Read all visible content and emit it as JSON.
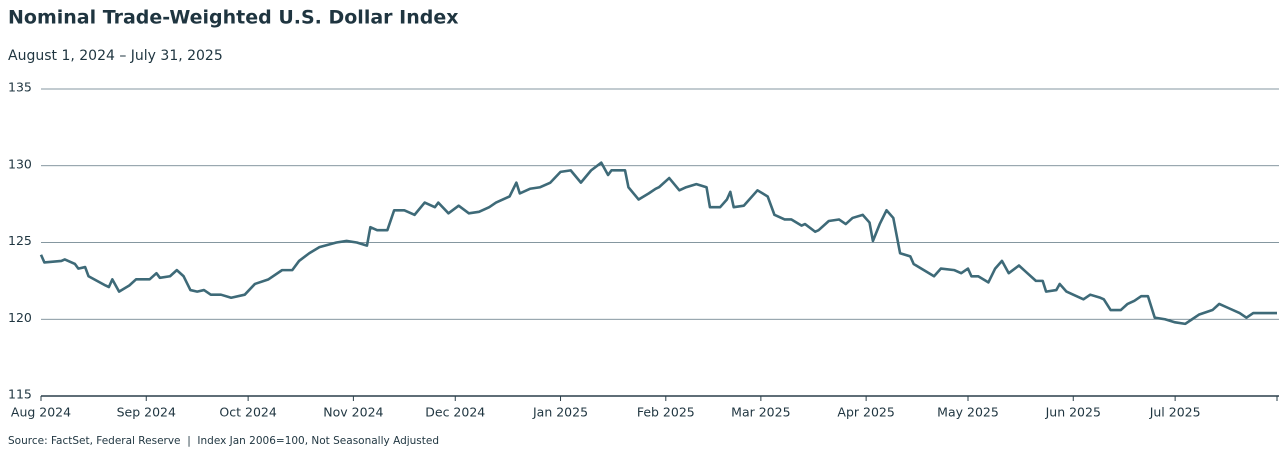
{
  "chart_data": {
    "type": "line",
    "title": "Nominal Trade-Weighted U.S. Dollar Index",
    "subtitle": "August 1, 2024 – July 31, 2025",
    "note": "Source: FactSet, Federal Reserve  |  Index Jan 2006=100, Not Seasonally Adjusted",
    "color": "#3e6a78",
    "grid": true,
    "ylim": [
      115,
      135
    ],
    "yticks": [
      115,
      120,
      125,
      130,
      135
    ],
    "xlim": [
      "2024-08-01",
      "2025-07-31"
    ],
    "xticks": [
      {
        "value": "2024-08-01",
        "label": "Aug 2024"
      },
      {
        "value": "2024-09-01",
        "label": "Sep 2024"
      },
      {
        "value": "2024-10-01",
        "label": "Oct 2024"
      },
      {
        "value": "2024-11-01",
        "label": "Nov 2024"
      },
      {
        "value": "2024-12-01",
        "label": "Dec 2024"
      },
      {
        "value": "2025-01-01",
        "label": "Jan 2025"
      },
      {
        "value": "2025-02-01",
        "label": "Feb 2025"
      },
      {
        "value": "2025-03-01",
        "label": "Mar 2025"
      },
      {
        "value": "2025-04-01",
        "label": "Apr 2025"
      },
      {
        "value": "2025-05-01",
        "label": "May 2025"
      },
      {
        "value": "2025-06-01",
        "label": "Jun 2025"
      },
      {
        "value": "2025-07-01",
        "label": "Jul 2025"
      }
    ],
    "x": [
      "2024-08-01",
      "2024-08-02",
      "2024-08-07",
      "2024-08-08",
      "2024-08-11",
      "2024-08-12",
      "2024-08-14",
      "2024-08-15",
      "2024-08-20",
      "2024-08-21",
      "2024-08-22",
      "2024-08-24",
      "2024-08-27",
      "2024-08-29",
      "2024-09-02",
      "2024-09-04",
      "2024-09-05",
      "2024-09-08",
      "2024-09-10",
      "2024-09-12",
      "2024-09-14",
      "2024-09-16",
      "2024-09-18",
      "2024-09-20",
      "2024-09-23",
      "2024-09-26",
      "2024-09-30",
      "2024-10-03",
      "2024-10-07",
      "2024-10-11",
      "2024-10-14",
      "2024-10-16",
      "2024-10-19",
      "2024-10-22",
      "2024-10-27",
      "2024-10-30",
      "2024-11-02",
      "2024-11-05",
      "2024-11-06",
      "2024-11-08",
      "2024-11-11",
      "2024-11-13",
      "2024-11-16",
      "2024-11-19",
      "2024-11-22",
      "2024-11-25",
      "2024-11-26",
      "2024-11-29",
      "2024-12-02",
      "2024-12-05",
      "2024-12-08",
      "2024-12-11",
      "2024-12-13",
      "2024-12-17",
      "2024-12-19",
      "2024-12-20",
      "2024-12-23",
      "2024-12-26",
      "2024-12-29",
      "2025-01-01",
      "2025-01-04",
      "2025-01-07",
      "2025-01-10",
      "2025-01-13",
      "2025-01-15",
      "2025-01-16",
      "2025-01-20",
      "2025-01-21",
      "2025-01-24",
      "2025-01-27",
      "2025-01-29",
      "2025-01-30",
      "2025-02-02",
      "2025-02-05",
      "2025-02-07",
      "2025-02-10",
      "2025-02-13",
      "2025-02-14",
      "2025-02-17",
      "2025-02-19",
      "2025-02-20",
      "2025-02-21",
      "2025-02-24",
      "2025-02-28",
      "2025-03-03",
      "2025-03-05",
      "2025-03-08",
      "2025-03-10",
      "2025-03-13",
      "2025-03-14",
      "2025-03-17",
      "2025-03-18",
      "2025-03-21",
      "2025-03-24",
      "2025-03-26",
      "2025-03-28",
      "2025-03-31",
      "2025-04-02",
      "2025-04-03",
      "2025-04-05",
      "2025-04-07",
      "2025-04-09",
      "2025-04-11",
      "2025-04-14",
      "2025-04-15",
      "2025-04-18",
      "2025-04-21",
      "2025-04-23",
      "2025-04-27",
      "2025-04-29",
      "2025-05-01",
      "2025-05-02",
      "2025-05-04",
      "2025-05-07",
      "2025-05-09",
      "2025-05-11",
      "2025-05-13",
      "2025-05-16",
      "2025-05-18",
      "2025-05-21",
      "2025-05-23",
      "2025-05-24",
      "2025-05-27",
      "2025-05-28",
      "2025-05-30",
      "2025-06-01",
      "2025-06-04",
      "2025-06-06",
      "2025-06-09",
      "2025-06-10",
      "2025-06-12",
      "2025-06-15",
      "2025-06-17",
      "2025-06-19",
      "2025-06-21",
      "2025-06-23",
      "2025-06-25",
      "2025-06-28",
      "2025-07-01",
      "2025-07-04",
      "2025-07-06",
      "2025-07-08",
      "2025-07-12",
      "2025-07-14",
      "2025-07-17",
      "2025-07-20",
      "2025-07-22",
      "2025-07-24",
      "2025-07-31"
    ],
    "values": [
      124.2,
      123.7,
      123.8,
      123.9,
      123.6,
      123.3,
      123.4,
      122.8,
      122.2,
      122.1,
      122.6,
      121.8,
      122.2,
      122.6,
      122.6,
      123.0,
      122.7,
      122.8,
      123.2,
      122.8,
      121.9,
      121.8,
      121.9,
      121.6,
      121.6,
      121.4,
      121.6,
      122.3,
      122.6,
      123.2,
      123.2,
      123.8,
      124.3,
      124.7,
      125.0,
      125.1,
      125.0,
      124.8,
      126.0,
      125.8,
      125.8,
      127.1,
      127.1,
      126.8,
      127.6,
      127.3,
      127.6,
      126.9,
      127.4,
      126.9,
      127.0,
      127.3,
      127.6,
      128.0,
      128.9,
      128.2,
      128.5,
      128.6,
      128.9,
      129.6,
      129.7,
      128.9,
      129.7,
      130.2,
      129.4,
      129.7,
      129.7,
      128.6,
      127.8,
      128.2,
      128.5,
      128.6,
      129.2,
      128.4,
      128.6,
      128.8,
      128.6,
      127.3,
      127.3,
      127.8,
      128.3,
      127.3,
      127.4,
      128.4,
      128.0,
      126.8,
      126.5,
      126.5,
      126.1,
      126.2,
      125.7,
      125.8,
      126.4,
      126.5,
      126.2,
      126.6,
      126.8,
      126.3,
      125.1,
      126.2,
      127.1,
      126.6,
      124.3,
      124.1,
      123.6,
      123.2,
      122.8,
      123.3,
      123.2,
      123.0,
      123.3,
      122.8,
      122.8,
      122.4,
      123.3,
      123.8,
      123.0,
      123.5,
      123.1,
      122.5,
      122.5,
      121.8,
      121.9,
      122.3,
      121.8,
      121.6,
      121.3,
      121.6,
      121.4,
      121.3,
      120.6,
      120.6,
      121.0,
      121.2,
      121.5,
      121.5,
      120.1,
      120.0,
      119.8,
      119.7,
      120.0,
      120.3,
      120.6,
      121.0,
      120.7,
      120.4,
      120.1,
      120.4,
      120.4
    ]
  }
}
